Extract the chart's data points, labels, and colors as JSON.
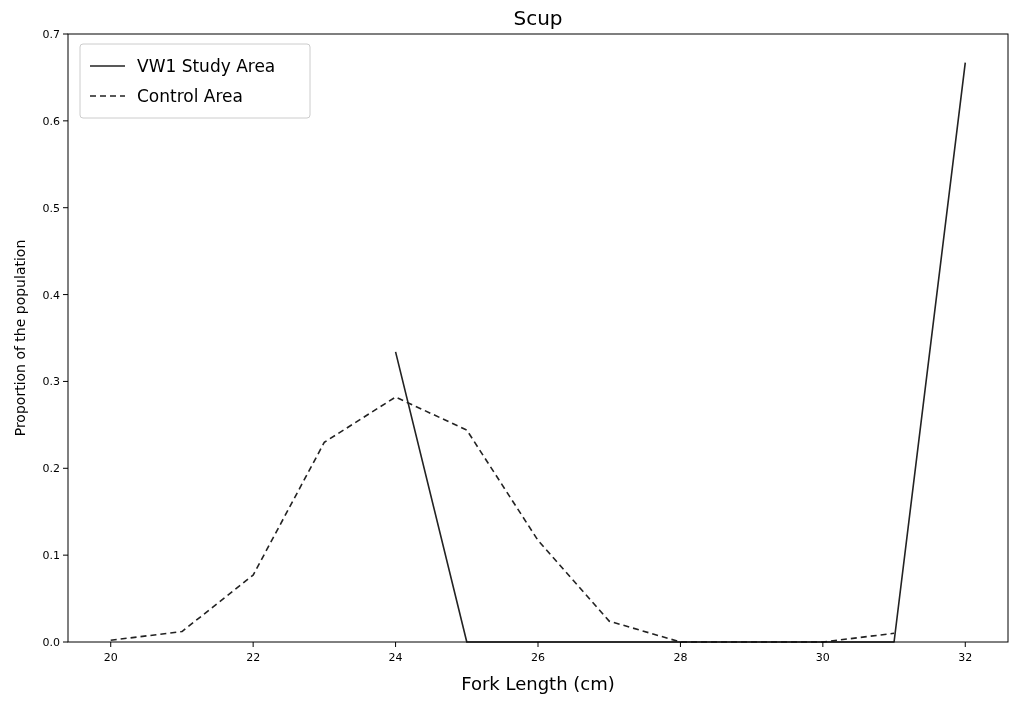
{
  "chart_data": {
    "type": "line",
    "title": "Scup",
    "xlabel": "Fork Length (cm)",
    "ylabel": "Proportion of the population",
    "xlim": [
      19.4,
      32.6
    ],
    "xticks": [
      20,
      22,
      24,
      26,
      28,
      30,
      32
    ],
    "ylim": [
      0,
      0.7
    ],
    "yticks": [
      {
        "value": 0,
        "label": "0.0"
      },
      {
        "value": 0.1,
        "label": "0.1"
      },
      {
        "value": 0.2,
        "label": "0.2"
      },
      {
        "value": 0.3,
        "label": "0.3"
      },
      {
        "value": 0.4,
        "label": "0.4"
      },
      {
        "value": 0.5,
        "label": "0.5"
      },
      {
        "value": 0.6,
        "label": "0.6"
      },
      {
        "value": 0.7,
        "label": "0.7"
      }
    ],
    "legend": "top left",
    "grid": false,
    "series": [
      {
        "name": "VW1 Study Area",
        "color": "#222222",
        "line_style": "solid",
        "x": [
          24,
          25,
          26,
          27,
          28,
          29,
          30,
          31,
          32
        ],
        "values": [
          0.334,
          0,
          0,
          0,
          0,
          0,
          0,
          0,
          0.667
        ]
      },
      {
        "name": "Control Area",
        "color": "#222222",
        "line_style": "dashed",
        "x": [
          20,
          21,
          22,
          23,
          24,
          25,
          26,
          27,
          28,
          29,
          30,
          31
        ],
        "values": [
          0.002,
          0.012,
          0.077,
          0.23,
          0.282,
          0.244,
          0.117,
          0.024,
          0,
          0,
          0,
          0.01
        ]
      }
    ]
  }
}
